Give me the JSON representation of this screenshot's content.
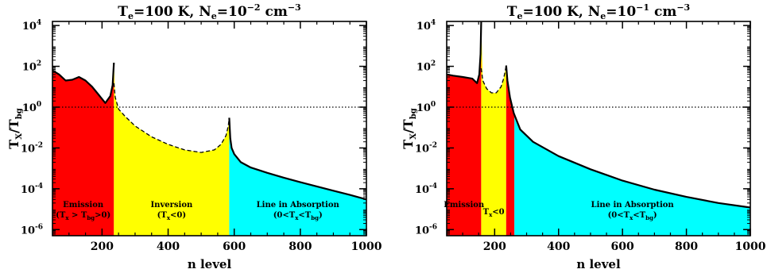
{
  "chart_data": [
    {
      "type": "area",
      "title": {
        "a": "T",
        "a_sub": "e",
        "b": "=100 K,  N",
        "b_sub": "e",
        "c": "=10",
        "c_sup": "−2",
        "d": " cm",
        "d_sup": "−3"
      },
      "xlabel": "n level",
      "ylabel": {
        "base": "T",
        "sub1": "X",
        "mid": "/T",
        "sub2": "bg"
      },
      "xlim": [
        50,
        1000
      ],
      "ylim_log10": [
        -6.3,
        4.2
      ],
      "y_scale": "log",
      "x_ticks": [
        200,
        400,
        600,
        800,
        1000
      ],
      "y_tick_exponents": [
        -6,
        -4,
        -2,
        0,
        2,
        4
      ],
      "y_tick_base": "10",
      "reference_line": 1,
      "series": [
        {
          "style": "solid",
          "x": [
            50,
            70,
            90,
            110,
            130,
            150,
            170,
            190,
            210,
            225,
            232,
            236
          ],
          "y": [
            63,
            40,
            20,
            22,
            30,
            20,
            10,
            4,
            1.6,
            3.5,
            12,
            150
          ]
        },
        {
          "style": "dashed",
          "x": [
            236,
            240,
            250,
            270,
            300,
            350,
            400,
            450,
            500,
            540,
            560,
            575,
            582,
            585
          ],
          "y": [
            15,
            3,
            0.8,
            0.35,
            0.12,
            0.035,
            0.015,
            0.008,
            0.006,
            0.008,
            0.015,
            0.04,
            0.12,
            0.3
          ]
        },
        {
          "style": "solid",
          "x": [
            585,
            588,
            592,
            600,
            620,
            650,
            700,
            750,
            800,
            850,
            900,
            950,
            1000
          ],
          "y": [
            0.3,
            0.03,
            0.01,
            0.005,
            0.002,
            0.0011,
            0.0006,
            0.00035,
            0.00021,
            0.00013,
            8e-05,
            5e-05,
            3e-05
          ]
        }
      ],
      "regions": [
        {
          "x": [
            50,
            236
          ],
          "color": "#ff0000",
          "label": "Emission",
          "sublabel": {
            "a": "(T",
            "a_sub": "x",
            "b": " > T",
            "b_sub": "bg",
            "c": ">0)"
          }
        },
        {
          "x": [
            236,
            585
          ],
          "color": "#ffff00",
          "label": "Inversion",
          "sublabel": {
            "a": "(T",
            "a_sub": "x",
            "b": "<0)"
          }
        },
        {
          "x": [
            585,
            1000
          ],
          "color": "#00ffff",
          "label": "Line in Absorption",
          "sublabel": {
            "a": "(0<T",
            "a_sub": "x",
            "b": "<T",
            "b_sub": "bg",
            "c": ")"
          }
        }
      ]
    },
    {
      "type": "area",
      "title": {
        "a": "T",
        "a_sub": "e",
        "b": "=100 K,  N",
        "b_sub": "e",
        "c": "=10",
        "c_sup": "−1",
        "d": " cm",
        "d_sup": "−3"
      },
      "xlabel": "n level",
      "ylabel": {
        "base": "T",
        "sub1": "X",
        "mid": "/T",
        "sub2": "bg"
      },
      "xlim": [
        50,
        1000
      ],
      "ylim_log10": [
        -6.3,
        4.2
      ],
      "y_scale": "log",
      "x_ticks": [
        200,
        400,
        600,
        800,
        1000
      ],
      "y_tick_exponents": [
        -6,
        -4,
        -2,
        0,
        2,
        4
      ],
      "y_tick_base": "10",
      "reference_line": 1,
      "series": [
        {
          "style": "solid",
          "x": [
            50,
            70,
            100,
            130,
            145,
            152,
            156,
            158
          ],
          "y": [
            40,
            35,
            30,
            25,
            15,
            40,
            400,
            15000
          ]
        },
        {
          "style": "dashed",
          "x": [
            158,
            163,
            175,
            190,
            205,
            220,
            228,
            233,
            236
          ],
          "y": [
            80,
            20,
            8,
            5,
            5,
            10,
            25,
            60,
            110
          ]
        },
        {
          "style": "solid",
          "x": [
            236,
            240,
            248,
            260,
            280,
            320,
            400,
            500,
            600,
            700,
            800,
            900,
            1000
          ],
          "y": [
            110,
            20,
            3,
            0.5,
            0.08,
            0.02,
            0.004,
            0.0009,
            0.00025,
            9e-05,
            4e-05,
            2e-05,
            1.2e-05
          ]
        }
      ],
      "regions": [
        {
          "x": [
            50,
            158
          ],
          "color": "#ff0000",
          "label": "Emission",
          "sublabel": null
        },
        {
          "x": [
            158,
            236
          ],
          "color": "#ffff00",
          "label": "",
          "sublabel": {
            "a": "T",
            "a_sub": "x",
            "b": "<0"
          }
        },
        {
          "x": [
            236,
            262
          ],
          "color": "#ff0000",
          "label": "",
          "sublabel": null
        },
        {
          "x": [
            262,
            1000
          ],
          "color": "#00ffff",
          "label": "Line in Absorption",
          "sublabel": {
            "a": "(0<T",
            "a_sub": "x",
            "b": "<T",
            "b_sub": "bg",
            "c": ")"
          }
        }
      ]
    }
  ]
}
